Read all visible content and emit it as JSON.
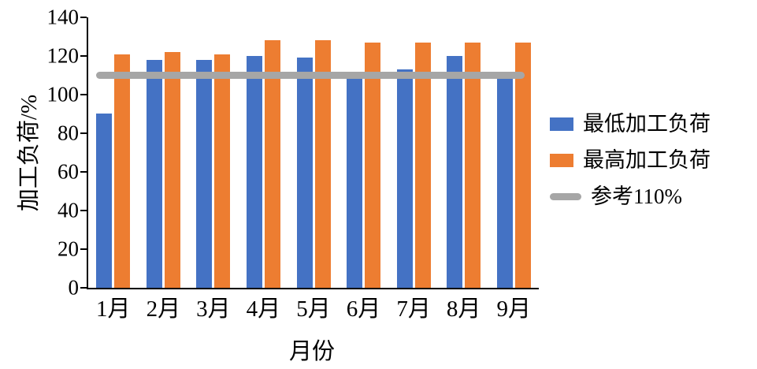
{
  "chart_data": {
    "type": "bar",
    "title": "",
    "xlabel": "月份",
    "ylabel": "加工负荷/%",
    "ylim": [
      0,
      140
    ],
    "ytick_step": 20,
    "grid": false,
    "legend_position": "right",
    "categories": [
      "1月",
      "2月",
      "3月",
      "4月",
      "5月",
      "6月",
      "7月",
      "8月",
      "9月"
    ],
    "series": [
      {
        "name": "最低加工负荷",
        "color": "#4472C4",
        "values": [
          90,
          118,
          118,
          120,
          119,
          110,
          113,
          120,
          110
        ]
      },
      {
        "name": "最高加工负荷",
        "color": "#ED7D31",
        "values": [
          121,
          122,
          121,
          128,
          128,
          127,
          127,
          127,
          127
        ]
      }
    ],
    "reference_line": {
      "label": "参考110%",
      "value": 110,
      "color": "#A6A6A6"
    }
  }
}
